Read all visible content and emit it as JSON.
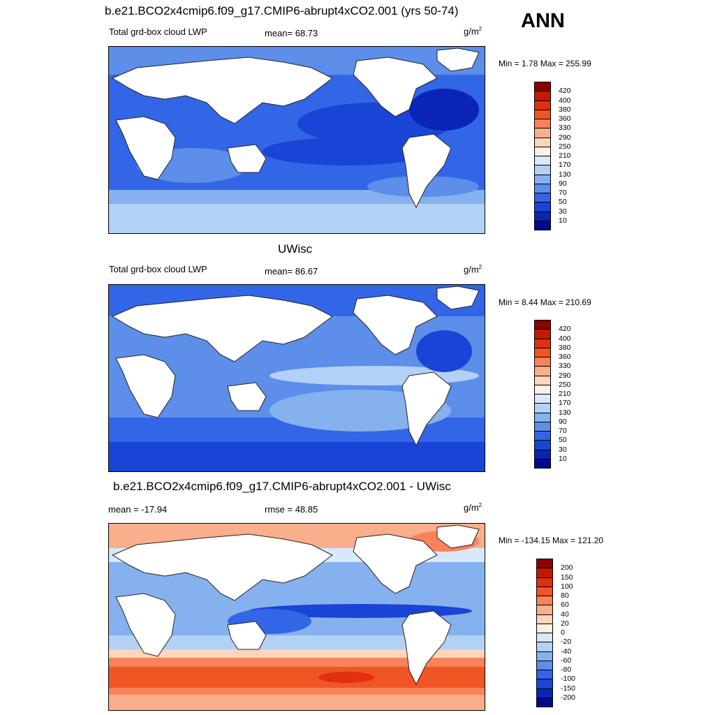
{
  "season": "ANN",
  "panels": [
    {
      "title": "b.e21.BCO2x4cmip6.f09_g17.CMIP6-abrupt4xCO2.001 (yrs 50-74)",
      "variable": "Total grd-box cloud LWP",
      "stat1": "mean=  68.73",
      "unit_base": "g/m",
      "unit_exp": "2",
      "minmax": "Min =   1.78 Max = 255.99",
      "colorbar": {
        "labels": [
          "420",
          "400",
          "380",
          "360",
          "330",
          "290",
          "250",
          "210",
          "170",
          "130",
          "90",
          "70",
          "50",
          "30",
          "10"
        ],
        "colors": [
          "#8b0000",
          "#c01a00",
          "#e03010",
          "#f05525",
          "#f8835a",
          "#fbae8c",
          "#fdd5bc",
          "#fff0e0",
          "#d9e9fb",
          "#b3d1f6",
          "#86b1ef",
          "#5c8eea",
          "#3366e6",
          "#1a44d5",
          "#0a24b8",
          "#000b8c"
        ]
      }
    },
    {
      "title": "UWisc",
      "variable": "Total grd-box cloud LWP",
      "stat1": "mean=  86.67",
      "unit_base": "g/m",
      "unit_exp": "2",
      "minmax": "Min =   8.44 Max = 210.69",
      "colorbar": {
        "labels": [
          "420",
          "400",
          "380",
          "360",
          "330",
          "290",
          "250",
          "210",
          "170",
          "130",
          "90",
          "70",
          "50",
          "30",
          "10"
        ],
        "colors": [
          "#8b0000",
          "#c01a00",
          "#e03010",
          "#f05525",
          "#f8835a",
          "#fbae8c",
          "#fdd5bc",
          "#fff0e0",
          "#d9e9fb",
          "#b3d1f6",
          "#86b1ef",
          "#5c8eea",
          "#3366e6",
          "#1a44d5",
          "#0a24b8",
          "#000b8c"
        ]
      }
    },
    {
      "title": "b.e21.BCO2x4cmip6.f09_g17.CMIP6-abrupt4xCO2.001 - UWisc",
      "variable": "mean = -17.94",
      "stat1": "rmse =  48.85",
      "unit_base": "g/m",
      "unit_exp": "2",
      "minmax": "Min = -134.15 Max = 121.20",
      "colorbar": {
        "labels": [
          "200",
          "150",
          "100",
          "80",
          "60",
          "40",
          "20",
          "0",
          "-20",
          "-40",
          "-60",
          "-80",
          "-100",
          "-150",
          "-200"
        ],
        "colors": [
          "#8b0000",
          "#c01a00",
          "#e03010",
          "#f05525",
          "#f8835a",
          "#fbae8c",
          "#fdd5bc",
          "#fff0e0",
          "#d9e9fb",
          "#b3d1f6",
          "#86b1ef",
          "#5c8eea",
          "#3366e6",
          "#1a44d5",
          "#0a24b8",
          "#000b8c"
        ]
      }
    }
  ]
}
